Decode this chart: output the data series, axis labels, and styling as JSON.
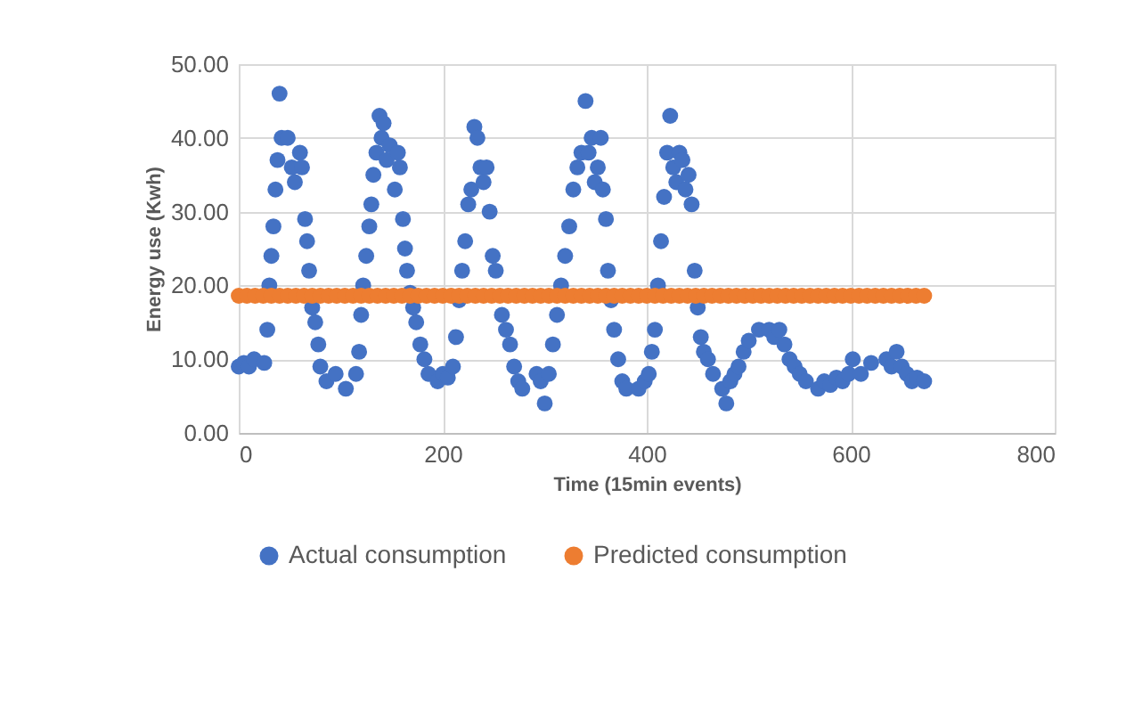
{
  "chart_data": {
    "type": "scatter",
    "xlabel": "Time (15min events)",
    "ylabel": "Energy use (Kwh)",
    "xlim": [
      0,
      800
    ],
    "xticks": [
      0,
      200,
      400,
      600,
      800
    ],
    "ylim": [
      0,
      50
    ],
    "yticks": [
      {
        "value": 0,
        "label": "0.00"
      },
      {
        "value": 10,
        "label": "10.00"
      },
      {
        "value": 20,
        "label": "20.00"
      },
      {
        "value": 30,
        "label": "30.00"
      },
      {
        "value": 40,
        "label": "40.00"
      },
      {
        "value": 50,
        "label": "50.00"
      }
    ],
    "grid": true,
    "legend": "bottom",
    "marker": "circle",
    "series": [
      {
        "name": "Actual consumption",
        "color": "#4472c4",
        "x": [
          0,
          5,
          10,
          15,
          25,
          28,
          30,
          32,
          34,
          36,
          38,
          40,
          42,
          48,
          52,
          55,
          60,
          62,
          65,
          67,
          69,
          72,
          75,
          78,
          80,
          86,
          95,
          105,
          115,
          118,
          120,
          122,
          125,
          128,
          130,
          132,
          135,
          138,
          140,
          142,
          145,
          148,
          153,
          156,
          158,
          161,
          163,
          165,
          168,
          171,
          174,
          178,
          182,
          186,
          195,
          200,
          205,
          210,
          213,
          216,
          219,
          222,
          225,
          228,
          231,
          234,
          237,
          240,
          243,
          246,
          249,
          252,
          258,
          262,
          266,
          270,
          274,
          278,
          292,
          296,
          300,
          304,
          308,
          312,
          316,
          320,
          324,
          328,
          332,
          336,
          340,
          343,
          346,
          349,
          352,
          355,
          357,
          360,
          362,
          365,
          368,
          372,
          376,
          380,
          392,
          398,
          402,
          405,
          408,
          411,
          414,
          417,
          420,
          423,
          426,
          429,
          432,
          435,
          438,
          441,
          444,
          447,
          450,
          453,
          456,
          460,
          465,
          474,
          478,
          482,
          486,
          490,
          495,
          500,
          510,
          520,
          525,
          530,
          535,
          540,
          545,
          550,
          556,
          568,
          574,
          580,
          586,
          592,
          598,
          602,
          610,
          620,
          635,
          640,
          645,
          650,
          655,
          660,
          665,
          672
        ],
        "values": [
          9,
          9.5,
          9,
          10,
          9.5,
          14,
          20,
          24,
          28,
          33,
          37,
          46,
          40,
          40,
          36,
          34,
          38,
          36,
          29,
          26,
          22,
          17,
          15,
          12,
          9,
          7,
          8,
          6,
          8,
          11,
          16,
          20,
          24,
          28,
          31,
          35,
          38,
          43,
          40,
          42,
          37,
          39,
          33,
          38,
          36,
          29,
          25,
          22,
          19,
          17,
          15,
          12,
          10,
          8,
          7,
          8,
          7.5,
          9,
          13,
          18,
          22,
          26,
          31,
          33,
          41.5,
          40,
          36,
          34,
          36,
          30,
          24,
          22,
          16,
          14,
          12,
          9,
          7,
          6,
          8,
          7,
          4,
          8,
          12,
          16,
          20,
          24,
          28,
          33,
          36,
          38,
          45,
          38,
          40,
          34,
          36,
          40,
          33,
          29,
          22,
          18,
          14,
          10,
          7,
          6,
          6,
          7,
          8,
          11,
          14,
          20,
          26,
          32,
          38,
          43,
          36,
          34,
          38,
          37,
          33,
          35,
          31,
          22,
          17,
          13,
          11,
          10,
          8,
          6,
          4,
          7,
          8,
          9,
          11,
          12.5,
          14,
          14,
          13,
          14,
          12,
          10,
          9,
          8,
          7,
          6,
          7,
          6.5,
          7.5,
          7,
          8,
          10,
          8,
          9.5,
          10,
          9,
          11,
          9,
          8,
          7,
          7.5,
          7
        ]
      },
      {
        "name": "Predicted consumption",
        "color": "#ed7d31",
        "x": [
          0,
          8,
          16,
          24,
          32,
          40,
          48,
          56,
          64,
          72,
          80,
          88,
          96,
          104,
          112,
          120,
          128,
          136,
          144,
          152,
          160,
          168,
          176,
          184,
          192,
          200,
          208,
          216,
          224,
          232,
          240,
          248,
          256,
          264,
          272,
          280,
          288,
          296,
          304,
          312,
          320,
          328,
          336,
          344,
          352,
          360,
          368,
          376,
          384,
          392,
          400,
          408,
          416,
          424,
          432,
          440,
          448,
          456,
          464,
          472,
          480,
          488,
          496,
          504,
          512,
          520,
          528,
          536,
          544,
          552,
          560,
          568,
          576,
          584,
          592,
          600,
          608,
          616,
          624,
          632,
          640,
          648,
          656,
          664,
          672
        ],
        "values": [
          18.6,
          18.6,
          18.6,
          18.6,
          18.6,
          18.6,
          18.6,
          18.6,
          18.6,
          18.6,
          18.6,
          18.6,
          18.6,
          18.6,
          18.6,
          18.6,
          18.6,
          18.6,
          18.6,
          18.6,
          18.6,
          18.6,
          18.6,
          18.6,
          18.6,
          18.6,
          18.6,
          18.6,
          18.6,
          18.6,
          18.6,
          18.6,
          18.6,
          18.6,
          18.6,
          18.6,
          18.6,
          18.6,
          18.6,
          18.6,
          18.6,
          18.6,
          18.6,
          18.6,
          18.6,
          18.6,
          18.6,
          18.6,
          18.6,
          18.6,
          18.6,
          18.6,
          18.6,
          18.6,
          18.6,
          18.6,
          18.6,
          18.6,
          18.6,
          18.6,
          18.6,
          18.6,
          18.6,
          18.6,
          18.6,
          18.6,
          18.6,
          18.6,
          18.6,
          18.6,
          18.6,
          18.6,
          18.6,
          18.6,
          18.6,
          18.6,
          18.6,
          18.6,
          18.6,
          18.6,
          18.6,
          18.6,
          18.6,
          18.6,
          18.6
        ]
      }
    ]
  }
}
